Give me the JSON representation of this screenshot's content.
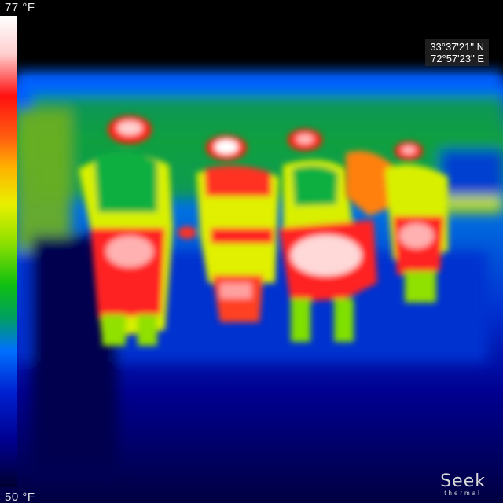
{
  "scale": {
    "max_label": "77 °F",
    "min_label": "50 °F"
  },
  "gps": {
    "latitude": "33°37'21\" N",
    "longitude": "72°57'23\" E"
  },
  "brand": {
    "name": "Seek",
    "sub": "thermal"
  },
  "colors": {
    "hot": "#ffffff",
    "warm": "#ff1010",
    "mid": "#e8f000",
    "cool": "#10c010",
    "cold": "#0030e0",
    "coldest": "#000040"
  }
}
